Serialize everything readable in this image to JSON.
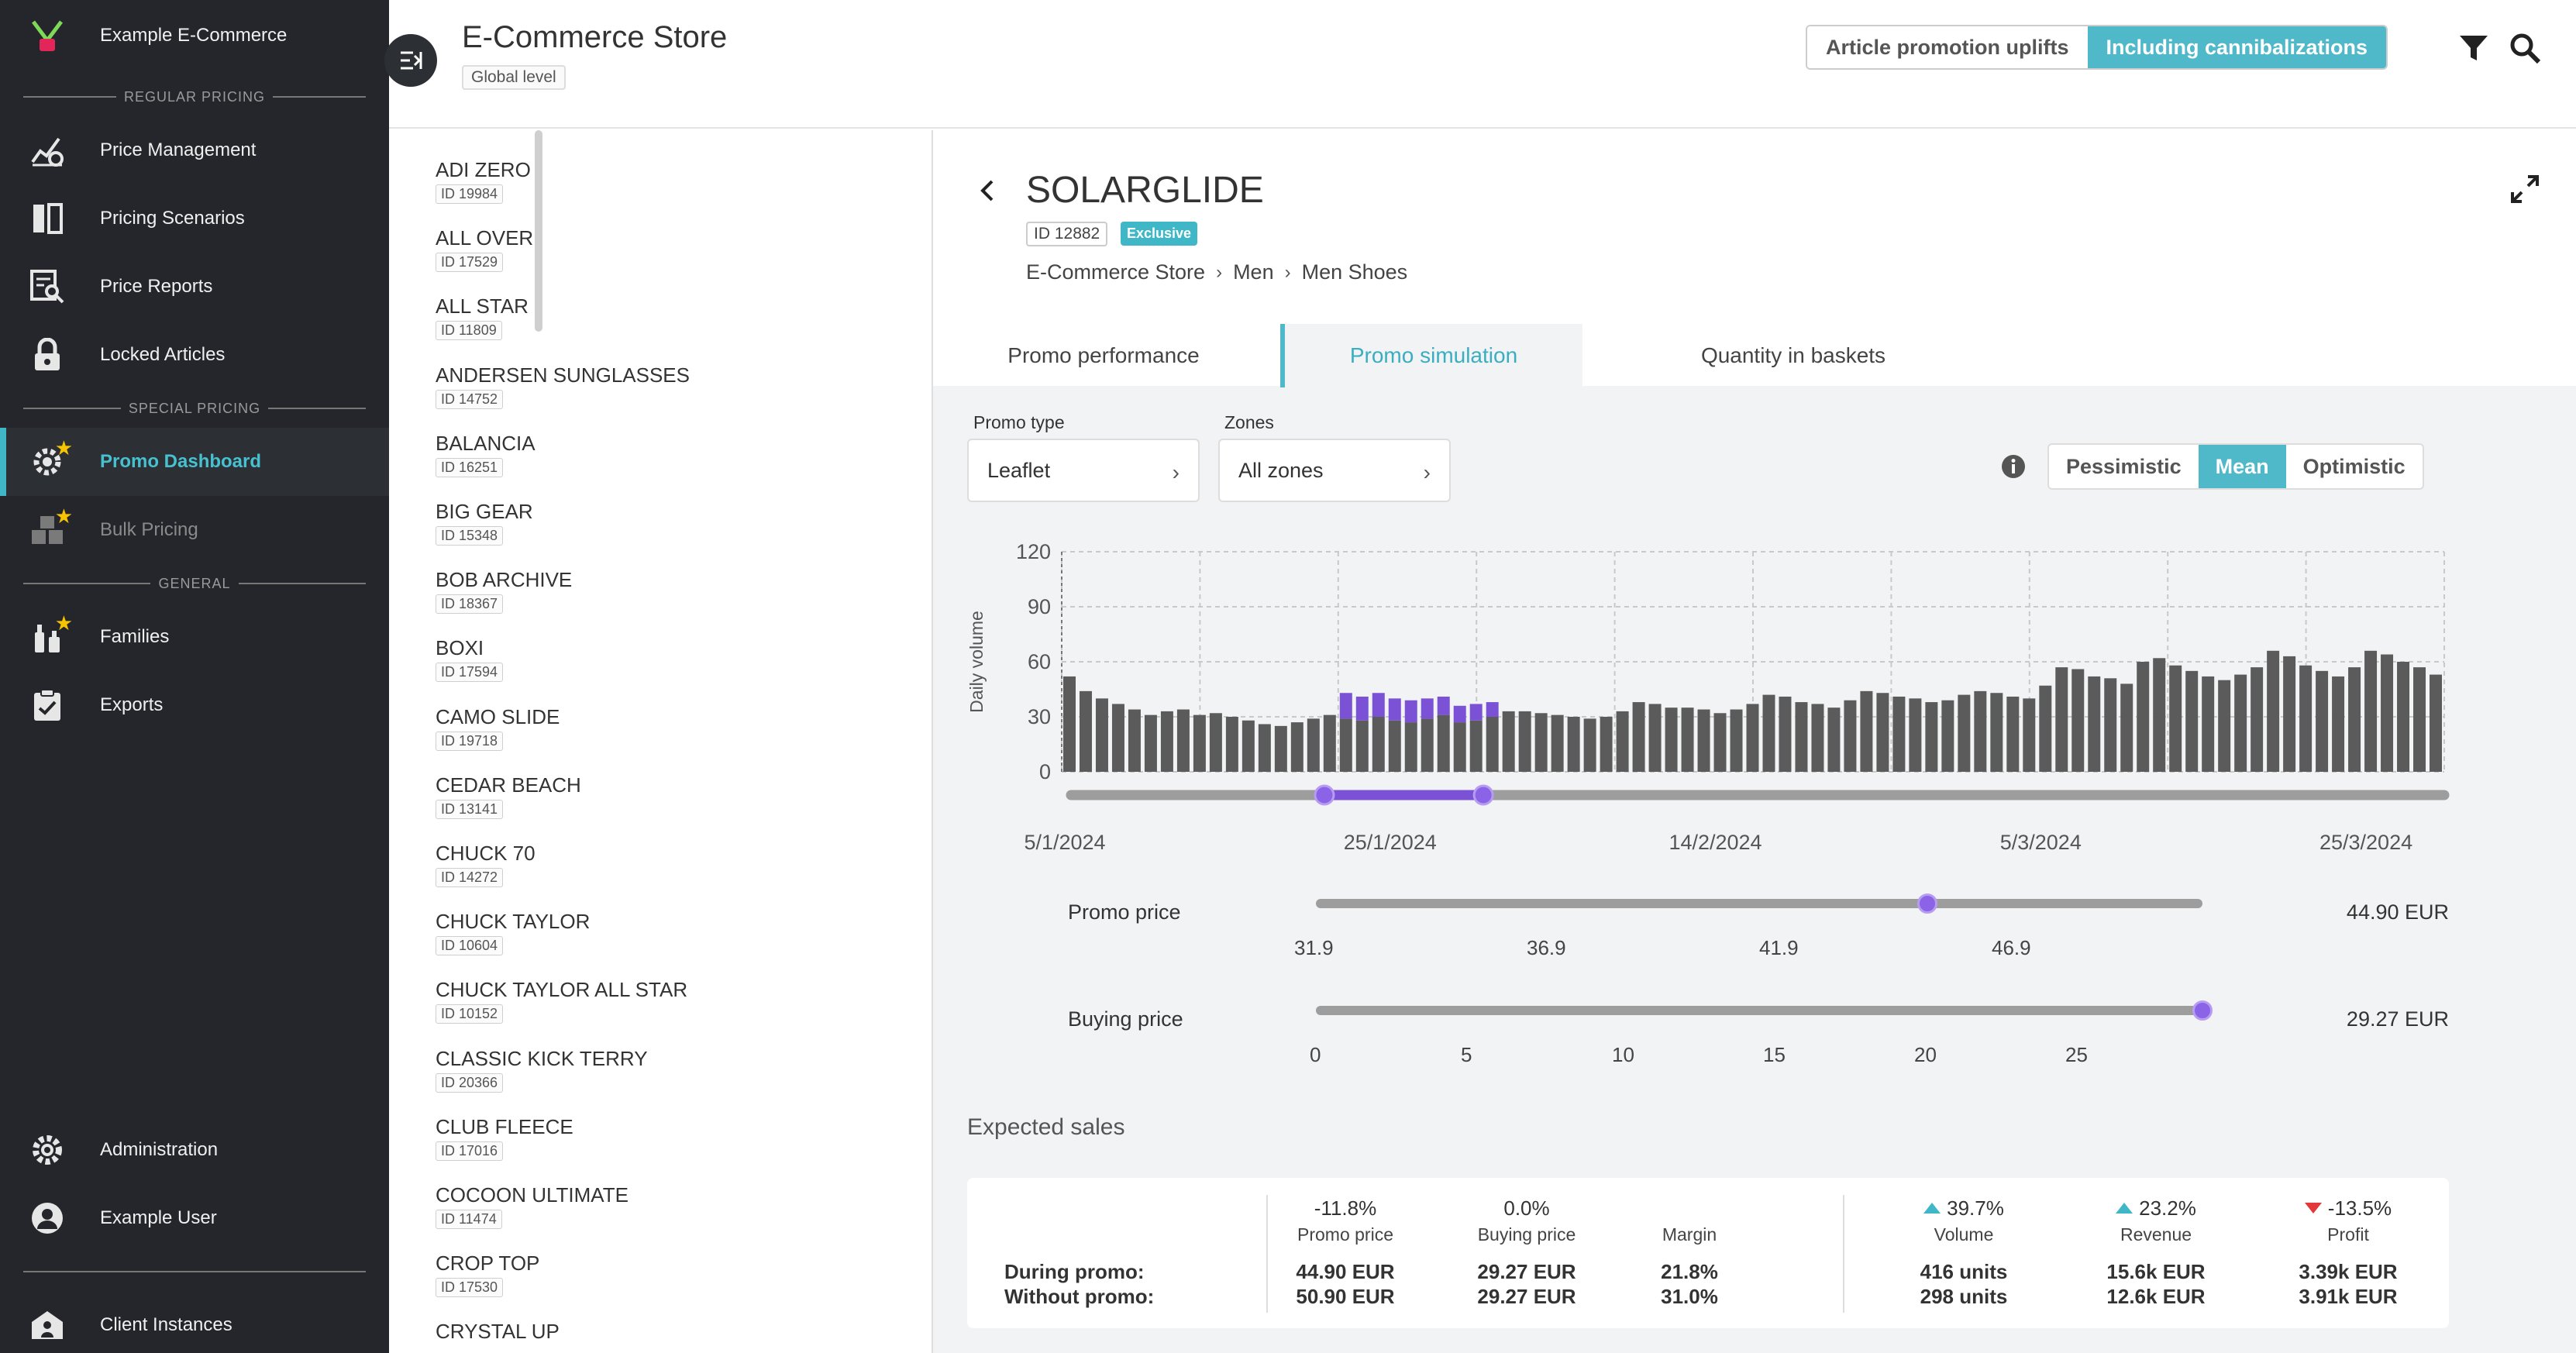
{
  "sidebar": {
    "app_name": "Example E-Commerce",
    "sections": {
      "regular": "REGULAR PRICING",
      "special": "SPECIAL PRICING",
      "general": "GENERAL"
    },
    "items": [
      {
        "label": "Price Management",
        "icon": "chart-gear-icon"
      },
      {
        "label": "Pricing Scenarios",
        "icon": "columns-icon"
      },
      {
        "label": "Price Reports",
        "icon": "report-search-icon"
      },
      {
        "label": "Locked Articles",
        "icon": "lock-icon"
      },
      {
        "label": "Promo Dashboard",
        "icon": "promo-gear-icon"
      },
      {
        "label": "Bulk Pricing",
        "icon": "boxes-icon"
      },
      {
        "label": "Families",
        "icon": "bottles-icon"
      },
      {
        "label": "Exports",
        "icon": "clipboard-check-icon"
      },
      {
        "label": "Administration",
        "icon": "gear-icon"
      },
      {
        "label": "Example User",
        "icon": "user-icon"
      },
      {
        "label": "Client Instances",
        "icon": "building-icon"
      }
    ]
  },
  "header": {
    "title": "E-Commerce Store",
    "level": "Global level",
    "toggle_left": "Article promotion uplifts",
    "toggle_right": "Including cannibalizations"
  },
  "articles": [
    {
      "name": "ADI ZERO",
      "id": "ID 19984"
    },
    {
      "name": "ALL OVER",
      "id": "ID 17529"
    },
    {
      "name": "ALL STAR",
      "id": "ID 11809"
    },
    {
      "name": "ANDERSEN SUNGLASSES",
      "id": "ID 14752"
    },
    {
      "name": "BALANCIA",
      "id": "ID 16251"
    },
    {
      "name": "BIG GEAR",
      "id": "ID 15348"
    },
    {
      "name": "BOB ARCHIVE",
      "id": "ID 18367"
    },
    {
      "name": "BOXI",
      "id": "ID 17594"
    },
    {
      "name": "CAMO SLIDE",
      "id": "ID 19718"
    },
    {
      "name": "CEDAR BEACH",
      "id": "ID 13141"
    },
    {
      "name": "CHUCK 70",
      "id": "ID 14272"
    },
    {
      "name": "CHUCK TAYLOR",
      "id": "ID 10604"
    },
    {
      "name": "CHUCK TAYLOR ALL STAR",
      "id": "ID 10152"
    },
    {
      "name": "CLASSIC KICK TERRY",
      "id": "ID 20366"
    },
    {
      "name": "CLUB FLEECE",
      "id": "ID 17016"
    },
    {
      "name": "COCOON ULTIMATE",
      "id": "ID 11474"
    },
    {
      "name": "CROP TOP",
      "id": "ID 17530"
    },
    {
      "name": "CRYSTAL UP",
      "id": ""
    }
  ],
  "detail": {
    "title": "SOLARGLIDE",
    "id": "ID 12882",
    "badge": "Exclusive",
    "breadcrumb": [
      "E-Commerce Store",
      "Men",
      "Men Shoes"
    ],
    "tabs": [
      "Promo performance",
      "Promo simulation",
      "Quantity in baskets"
    ],
    "promo_type_label": "Promo type",
    "promo_type_value": "Leaflet",
    "zones_label": "Zones",
    "zones_value": "All zones",
    "scenarios": [
      "Pessimistic",
      "Mean",
      "Optimistic"
    ],
    "promo_price_label": "Promo price",
    "promo_price_value": "44.90 EUR",
    "promo_price_ticks": [
      "31.9",
      "36.9",
      "41.9",
      "46.9"
    ],
    "promo_price_fraction": 0.69,
    "buying_price_label": "Buying price",
    "buying_price_value": "29.27 EUR",
    "buying_price_ticks": [
      "0",
      "5",
      "10",
      "15",
      "20",
      "25"
    ],
    "buying_price_fraction": 1.0,
    "date_range_fraction": [
      0.19,
      0.305
    ],
    "expected_sales_title": "Expected sales",
    "sales": {
      "row_during": "During promo:",
      "row_without": "Without promo:",
      "columns": [
        {
          "change": "-11.8%",
          "trend": "none",
          "header": "Promo price",
          "during": "44.90 EUR",
          "without": "50.90 EUR"
        },
        {
          "change": "0.0%",
          "trend": "none",
          "header": "Buying price",
          "during": "29.27 EUR",
          "without": "29.27 EUR"
        },
        {
          "change": "",
          "trend": "none",
          "header": "Margin",
          "during": "21.8%",
          "without": "31.0%"
        },
        {
          "change": "39.7%",
          "trend": "up",
          "header": "Volume",
          "during": "416 units",
          "without": "298 units"
        },
        {
          "change": "23.2%",
          "trend": "up",
          "header": "Revenue",
          "during": "15.6k EUR",
          "without": "12.6k EUR"
        },
        {
          "change": "-13.5%",
          "trend": "down",
          "header": "Profit",
          "during": "3.39k EUR",
          "without": "3.91k EUR"
        }
      ]
    }
  },
  "chart_data": {
    "type": "bar",
    "ylabel": "Daily volume",
    "ylim": [
      0,
      120
    ],
    "yticks": [
      "0",
      "30",
      "60",
      "90",
      "120"
    ],
    "xticks": [
      "5/1/2024",
      "25/1/2024",
      "14/2/2024",
      "5/3/2024",
      "25/3/2024"
    ],
    "xtick_index": [
      0,
      20,
      40,
      60,
      80
    ],
    "promo_range": [
      17,
      27
    ],
    "colors": {
      "base": "#5b5b5b",
      "uplift": "#7b52d6",
      "grid": "#c9c9c9"
    },
    "series": [
      {
        "name": "Baseline",
        "values": [
          52,
          44,
          40,
          37,
          34,
          31,
          33,
          34,
          31,
          32,
          30,
          28,
          26,
          25,
          27,
          29,
          31,
          29,
          28,
          30,
          28,
          27,
          29,
          31,
          27,
          28,
          30,
          33,
          33,
          32,
          31,
          30,
          29,
          30,
          33,
          38,
          37,
          35,
          35,
          34,
          32,
          34,
          37,
          42,
          41,
          38,
          37,
          35,
          39,
          44,
          43,
          41,
          40,
          38,
          39,
          42,
          44,
          43,
          41,
          40,
          47,
          57,
          56,
          52,
          51,
          48,
          60,
          62,
          58,
          55,
          52,
          50,
          53,
          57,
          66,
          63,
          58,
          55,
          52,
          57,
          66,
          64,
          60,
          57,
          53
        ]
      },
      {
        "name": "Promo uplift",
        "values": [
          0,
          0,
          0,
          0,
          0,
          0,
          0,
          0,
          0,
          0,
          0,
          0,
          0,
          0,
          0,
          0,
          0,
          14,
          13,
          13,
          12,
          12,
          11,
          10,
          9,
          9,
          8,
          0,
          0,
          0,
          0,
          0,
          0,
          0,
          0,
          0,
          0,
          0,
          0,
          0,
          0,
          0,
          0,
          0,
          0,
          0,
          0,
          0,
          0,
          0,
          0,
          0,
          0,
          0,
          0,
          0,
          0,
          0,
          0,
          0,
          0,
          0,
          0,
          0,
          0,
          0,
          0,
          0,
          0,
          0,
          0,
          0,
          0,
          0,
          0,
          0,
          0,
          0,
          0,
          0,
          0,
          0,
          0,
          0,
          0
        ]
      }
    ]
  }
}
